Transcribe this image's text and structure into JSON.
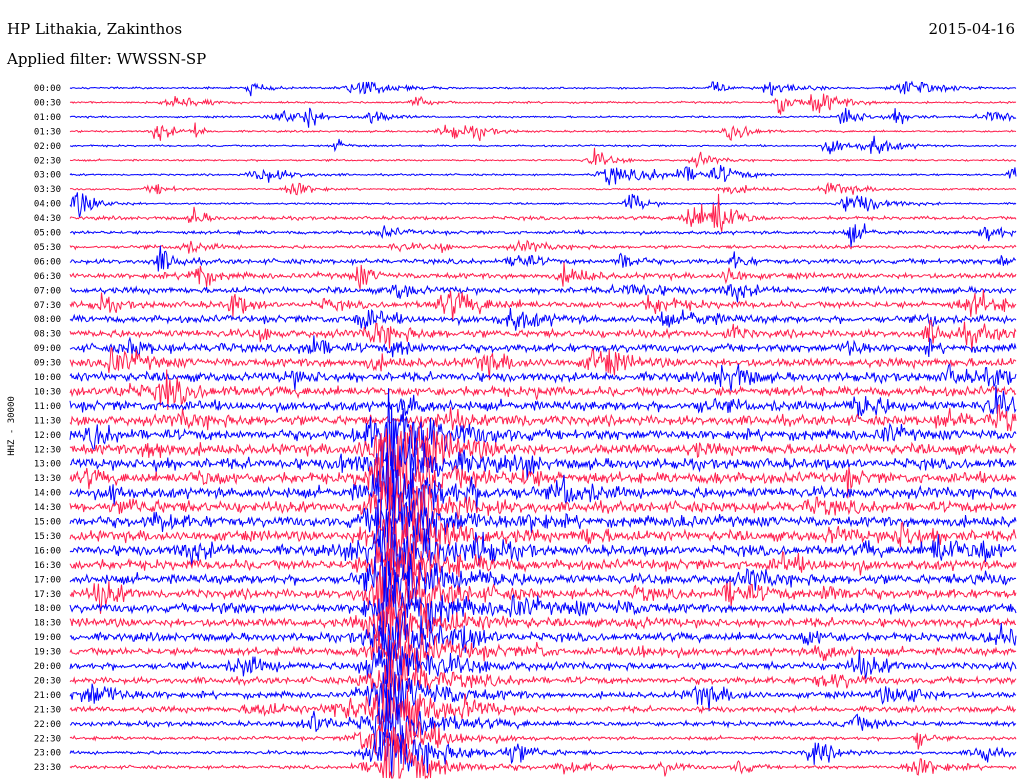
{
  "header": {
    "station": "HP Lithakia, Zakinthos",
    "filter": "Applied filter: WWSSN-SP",
    "date": "2015-04-16"
  },
  "colors": {
    "trace_a": "#0000ff",
    "trace_b": "#ff1f4d"
  },
  "chart_data": {
    "type": "line",
    "ylabel": "HHZ - 30000",
    "row_labels": [
      "00:00",
      "00:30",
      "01:00",
      "01:30",
      "02:00",
      "02:30",
      "03:00",
      "03:30",
      "04:00",
      "04:30",
      "05:00",
      "05:30",
      "06:00",
      "06:30",
      "07:00",
      "07:30",
      "08:00",
      "08:30",
      "09:00",
      "09:30",
      "10:00",
      "10:30",
      "11:00",
      "11:30",
      "12:00",
      "12:30",
      "13:00",
      "13:30",
      "14:00",
      "14:30",
      "15:00",
      "15:30",
      "16:00",
      "16:30",
      "17:00",
      "17:30",
      "18:00",
      "18:30",
      "19:00",
      "19:30",
      "20:00",
      "20:30",
      "21:00",
      "21:30",
      "22:00",
      "22:30",
      "23:00",
      "23:30"
    ],
    "row_minutes": 30,
    "grid": false
  }
}
